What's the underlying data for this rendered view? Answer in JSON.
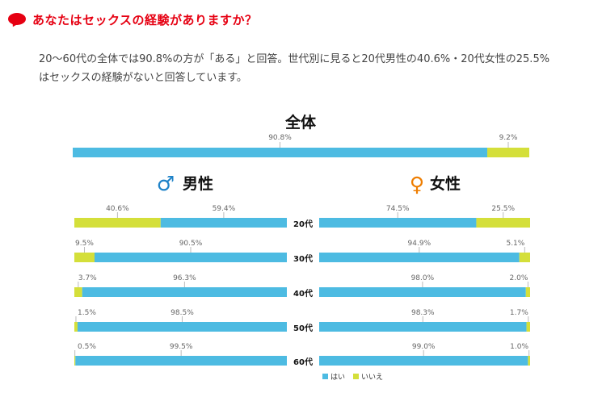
{
  "header": {
    "title": "あなたはセックスの経験がありますか？",
    "description": "20～60代の全体では90.8%の方が「ある」と回答。世代別に見ると20代男性の40.6%・20代女性の25.5%はセックスの経験がないと回答しています。"
  },
  "colors": {
    "yes": "#4dbbe2",
    "no": "#d4df3a",
    "accent": "#e60012",
    "male_icon": "#1e82c8",
    "female_icon": "#ee7d00"
  },
  "chart_data": {
    "type": "bar",
    "overall": {
      "title": "全体",
      "yes": 90.8,
      "no": 9.2,
      "yes_label": "90.8%",
      "no_label": "9.2%"
    },
    "male": {
      "title": "男性",
      "rows": [
        {
          "age": "20代",
          "yes": 59.4,
          "no": 40.6,
          "yes_label": "59.4%",
          "no_label": "40.6%"
        },
        {
          "age": "30代",
          "yes": 90.5,
          "no": 9.5,
          "yes_label": "90.5%",
          "no_label": "9.5%"
        },
        {
          "age": "40代",
          "yes": 96.3,
          "no": 3.7,
          "yes_label": "96.3%",
          "no_label": "3.7%"
        },
        {
          "age": "50代",
          "yes": 98.5,
          "no": 1.5,
          "yes_label": "98.5%",
          "no_label": "1.5%"
        },
        {
          "age": "60代",
          "yes": 99.5,
          "no": 0.5,
          "yes_label": "99.5%",
          "no_label": "0.5%"
        }
      ]
    },
    "female": {
      "title": "女性",
      "rows": [
        {
          "age": "20代",
          "yes": 74.5,
          "no": 25.5,
          "yes_label": "74.5%",
          "no_label": "25.5%"
        },
        {
          "age": "30代",
          "yes": 94.9,
          "no": 5.1,
          "yes_label": "94.9%",
          "no_label": "5.1%"
        },
        {
          "age": "40代",
          "yes": 98.0,
          "no": 2.0,
          "yes_label": "98.0%",
          "no_label": "2.0%"
        },
        {
          "age": "50代",
          "yes": 98.3,
          "no": 1.7,
          "yes_label": "98.3%",
          "no_label": "1.7%"
        },
        {
          "age": "60代",
          "yes": 99.0,
          "no": 1.0,
          "yes_label": "99.0%",
          "no_label": "1.0%"
        }
      ]
    },
    "legend": [
      {
        "name": "はい",
        "key": "yes"
      },
      {
        "name": "いいえ",
        "key": "no"
      }
    ]
  }
}
